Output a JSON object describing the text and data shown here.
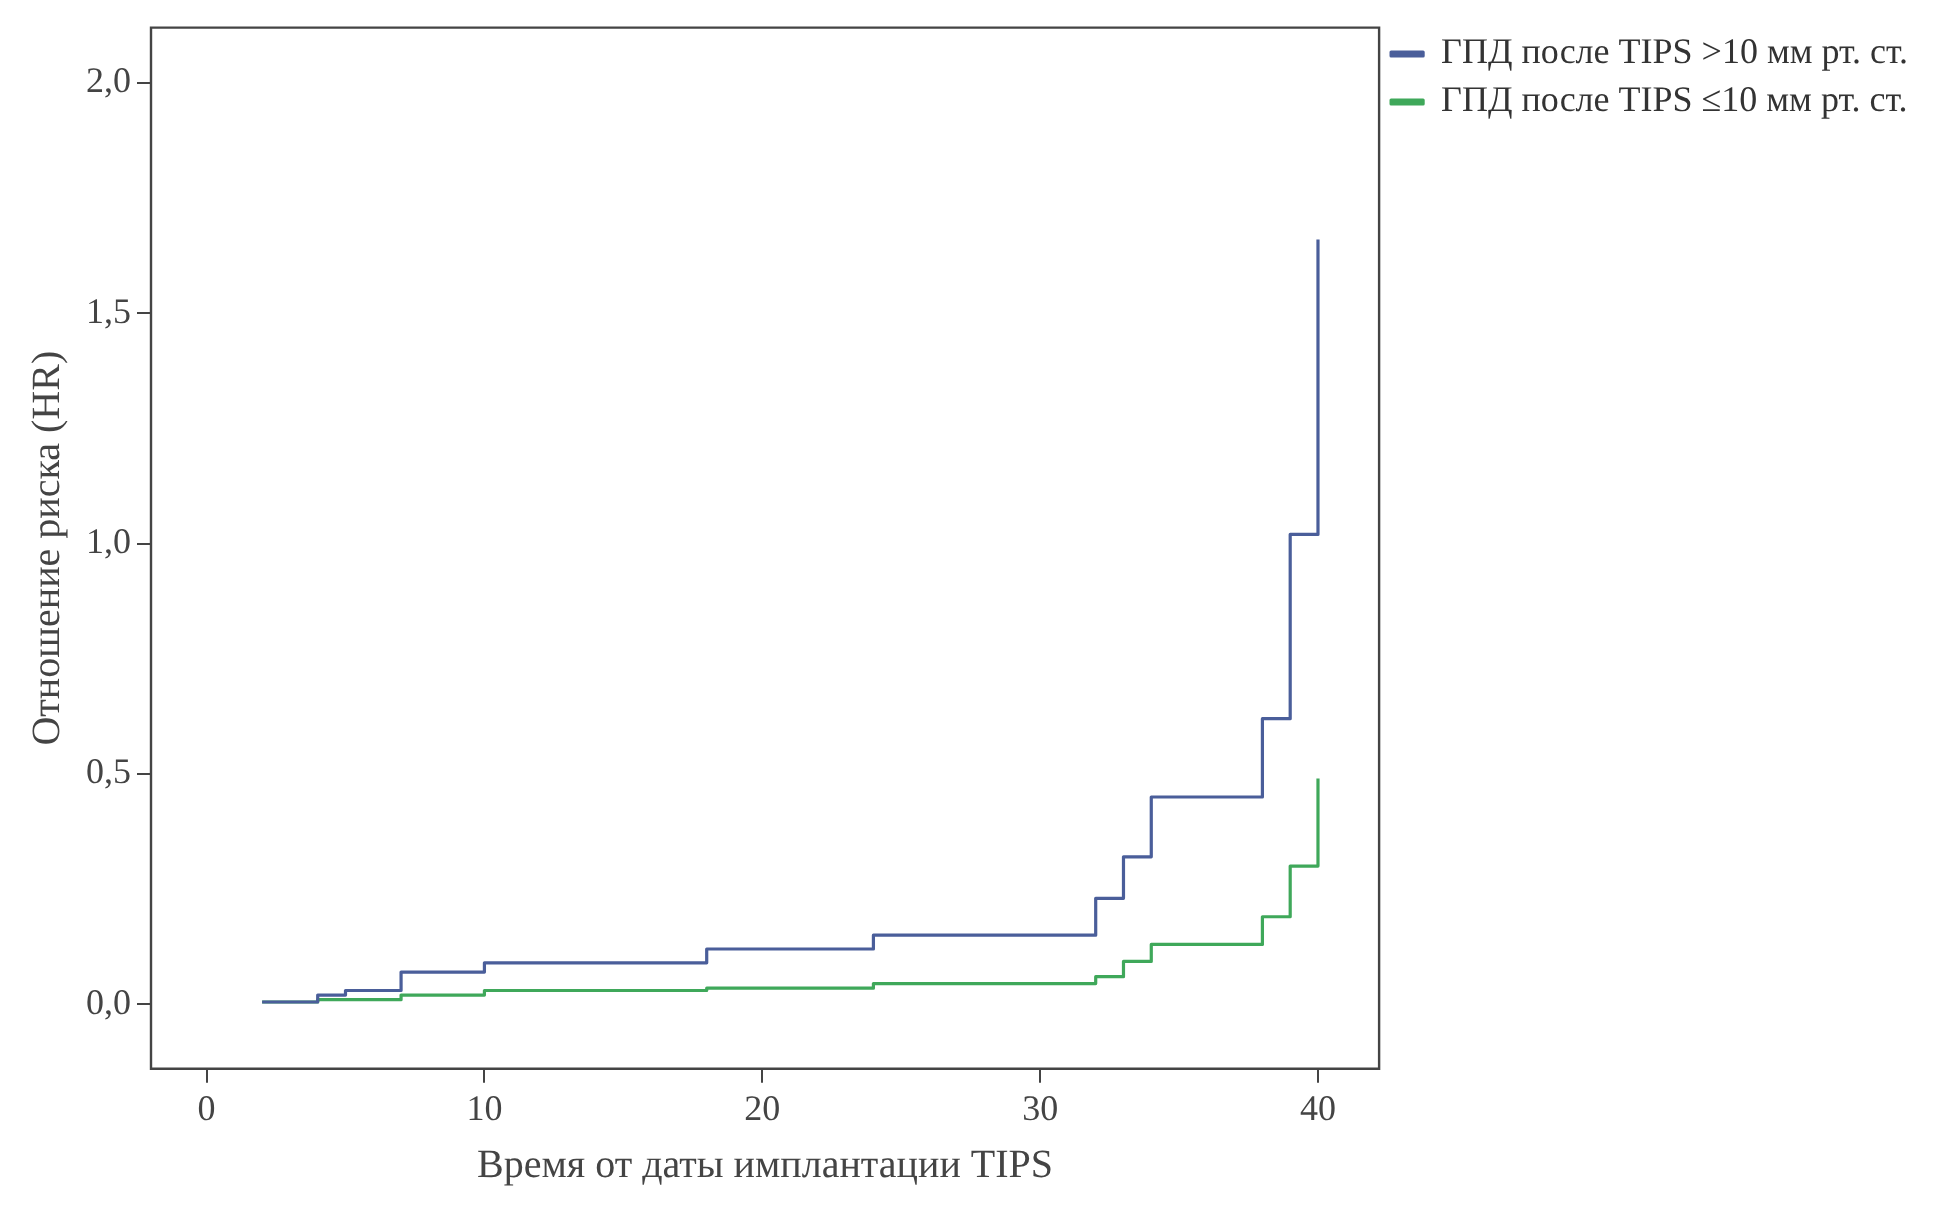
{
  "chart_data": {
    "type": "step",
    "xlabel": "Время от даты имплантации TIPS",
    "ylabel": "Отношение риска (HR)",
    "series": [
      {
        "name": "ГПД после TIPS >10 мм рт. ст.",
        "color": "#4a5e9a",
        "x": [
          2,
          4,
          5,
          7,
          10,
          18,
          24,
          32,
          33,
          34,
          38,
          39,
          40
        ],
        "values": [
          0.005,
          0.02,
          0.03,
          0.07,
          0.09,
          0.12,
          0.15,
          0.23,
          0.32,
          0.45,
          0.62,
          1.02,
          1.66
        ]
      },
      {
        "name": "ГПД после TIPS ≤10 мм рт. ст.",
        "color": "#3fa85a",
        "x": [
          2,
          4,
          7,
          10,
          18,
          24,
          32,
          33,
          34,
          38,
          39,
          40
        ],
        "values": [
          0.005,
          0.01,
          0.02,
          0.03,
          0.035,
          0.045,
          0.06,
          0.093,
          0.13,
          0.19,
          0.3,
          0.49
        ]
      }
    ],
    "xlim": [
      -2,
      42.2
    ],
    "xticks": [
      0,
      10,
      20,
      30,
      40
    ],
    "ylim": [
      -0.14,
      2.12
    ],
    "yticks": [
      {
        "value": 0,
        "label": "0,0"
      },
      {
        "value": 0.5,
        "label": "0,5"
      },
      {
        "value": 1,
        "label": "1,0"
      },
      {
        "value": 1.5,
        "label": "1,5"
      },
      {
        "value": 2,
        "label": "2,0"
      }
    ],
    "grid": false,
    "legend": "right",
    "line_style": "solid",
    "marker": "none"
  }
}
